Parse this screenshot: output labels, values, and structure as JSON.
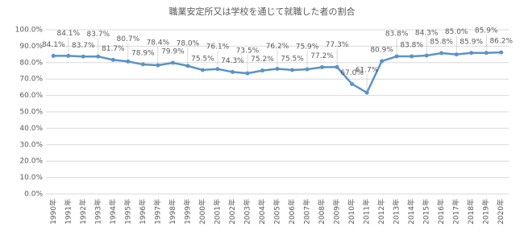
{
  "chart_data": {
    "type": "line",
    "title": "職業安定所又は学校を通じて就職した者の割合",
    "categories": [
      "1990年",
      "1991年",
      "1992年",
      "1993年",
      "1994年",
      "1995年",
      "1996年",
      "1997年",
      "1998年",
      "1999年",
      "2000年",
      "2001年",
      "2002年",
      "2003年",
      "2004年",
      "2005年",
      "2006年",
      "2007年",
      "2008年",
      "2009年",
      "2010年",
      "2011年",
      "2012年",
      "2013年",
      "2014年",
      "2015年",
      "2016年",
      "2017年",
      "2018年",
      "2019年",
      "2020年"
    ],
    "series": [
      {
        "color": "#5b93c7",
        "values": [
          84.1,
          84.1,
          83.7,
          83.7,
          81.7,
          80.7,
          78.9,
          78.4,
          79.9,
          78.0,
          75.5,
          76.1,
          74.3,
          73.5,
          75.2,
          76.2,
          75.5,
          75.9,
          77.2,
          77.3,
          67.0,
          61.7,
          80.9,
          83.8,
          83.8,
          84.3,
          85.8,
          85.0,
          85.9,
          85.9,
          86.2
        ],
        "value_labels": [
          "84.1%",
          "84.1%",
          "83.7%",
          "83.7%",
          "81.7%",
          "80.7%",
          "78.9%",
          "78.4%",
          "79.9%",
          "78.0%",
          "75.5%",
          "76.1%",
          "74.3%",
          "73.5%",
          "75.2%",
          "76.2%",
          "75.5%",
          "75.9%",
          "77.2%",
          "77.3%",
          "67.0%",
          "61.7%",
          "80.9%",
          "83.8%",
          "83.8%",
          "84.3%",
          "85.8%",
          "85.0%",
          "85.9%",
          "85.9%",
          "86.2%"
        ]
      }
    ],
    "ylim": [
      0,
      100
    ],
    "yticks": [
      {
        "value": 0,
        "label": "0.0%"
      },
      {
        "value": 10,
        "label": "10.0%"
      },
      {
        "value": 20,
        "label": "20.0%"
      },
      {
        "value": 30,
        "label": "30.0%"
      },
      {
        "value": 40,
        "label": "40.0%"
      },
      {
        "value": 50,
        "label": "50.0%"
      },
      {
        "value": 60,
        "label": "60.0%"
      },
      {
        "value": 70,
        "label": "70.0%"
      },
      {
        "value": 80,
        "label": "80.0%"
      },
      {
        "value": 90,
        "label": "90.0%"
      },
      {
        "value": 100,
        "label": "100.0%"
      }
    ],
    "grid": true
  }
}
